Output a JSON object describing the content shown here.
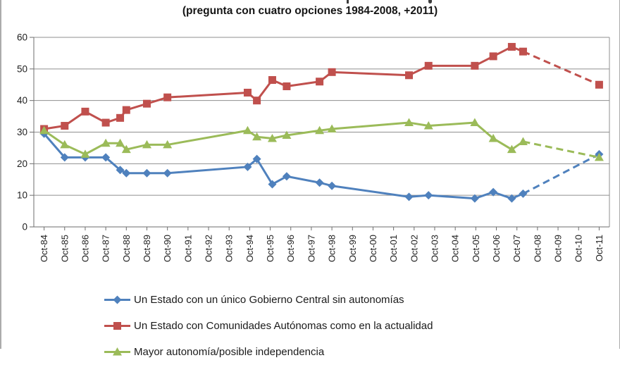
{
  "title_area": {
    "line1_clipped": true,
    "subtitle": "(pregunta con cuatro opciones 1984-2008, +2011)"
  },
  "chart_data": {
    "type": "line",
    "title": "(pregunta con cuatro opciones 1984-2008, +2011)",
    "categories": [
      "Oct-84",
      "Oct-85",
      "Oct-86",
      "Oct-87",
      "Oct-88",
      "Oct-89",
      "Oct-90",
      "Oct-91",
      "Oct-92",
      "Oct-93",
      "Oct-94",
      "Oct-95",
      "Oct-96",
      "Oct-97",
      "Oct-98",
      "Oct-99",
      "Oct-00",
      "Oct-01",
      "Oct-02",
      "Oct-03",
      "Oct-04",
      "Oct-05",
      "Oct-06",
      "Oct-07",
      "Oct-08",
      "Oct-09",
      "Oct-10",
      "Oct-11"
    ],
    "ylim": [
      0,
      60
    ],
    "yticks": [
      0,
      10,
      20,
      30,
      40,
      50,
      60
    ],
    "grid": true,
    "legend_position": "bottom",
    "x_unit": "category_index_fractional",
    "series": [
      {
        "name": "Un Estado con un único Gobierno Central sin autonomías",
        "color": "#4F81BD",
        "marker": "diamond",
        "points": [
          [
            0,
            29.5
          ],
          [
            1,
            22
          ],
          [
            2,
            22
          ],
          [
            3,
            22
          ],
          [
            3.7,
            18
          ],
          [
            4,
            17
          ],
          [
            5,
            17
          ],
          [
            6,
            17
          ],
          [
            9.9,
            19
          ],
          [
            10.35,
            21.5
          ],
          [
            11.1,
            13.5
          ],
          [
            11.8,
            16
          ],
          [
            13.4,
            14
          ],
          [
            14,
            13
          ],
          [
            17.75,
            9.5
          ],
          [
            18.7,
            10
          ],
          [
            20.95,
            9
          ],
          [
            21.85,
            11
          ],
          [
            22.75,
            9
          ],
          [
            23.3,
            10.5
          ]
        ],
        "dashed_tail": [
          [
            23.3,
            10.5
          ],
          [
            27,
            23
          ]
        ]
      },
      {
        "name": "Un Estado con Comunidades Autónomas como en la actualidad",
        "color": "#C0504D",
        "marker": "square",
        "points": [
          [
            0,
            31
          ],
          [
            1,
            32
          ],
          [
            2,
            36.5
          ],
          [
            3,
            33
          ],
          [
            3.7,
            34.5
          ],
          [
            4,
            37
          ],
          [
            5,
            39
          ],
          [
            6,
            41
          ],
          [
            9.9,
            42.5
          ],
          [
            10.35,
            40
          ],
          [
            11.1,
            46.5
          ],
          [
            11.8,
            44.5
          ],
          [
            13.4,
            46
          ],
          [
            14,
            49
          ],
          [
            17.75,
            48
          ],
          [
            18.7,
            51
          ],
          [
            20.95,
            51
          ],
          [
            21.85,
            54
          ],
          [
            22.75,
            57
          ],
          [
            23.3,
            55.5
          ]
        ],
        "dashed_tail": [
          [
            23.3,
            55.5
          ],
          [
            27,
            45
          ]
        ]
      },
      {
        "name": "Mayor autonomía/posible independencia",
        "color": "#9BBB59",
        "marker": "triangle",
        "points": [
          [
            0,
            30.5
          ],
          [
            1,
            26
          ],
          [
            2,
            23
          ],
          [
            3,
            26.5
          ],
          [
            3.7,
            26.5
          ],
          [
            4,
            24.5
          ],
          [
            5,
            26
          ],
          [
            6,
            26
          ],
          [
            9.9,
            30.5
          ],
          [
            10.35,
            28.5
          ],
          [
            11.1,
            28
          ],
          [
            11.8,
            29
          ],
          [
            13.4,
            30.5
          ],
          [
            14,
            31
          ],
          [
            17.75,
            33
          ],
          [
            18.7,
            32
          ],
          [
            20.95,
            33
          ],
          [
            21.85,
            28
          ],
          [
            22.75,
            24.5
          ],
          [
            23.3,
            27
          ]
        ],
        "dashed_tail": [
          [
            23.3,
            27
          ],
          [
            27,
            22
          ]
        ]
      }
    ],
    "colors": {
      "gridline": "#8f8f8f",
      "axis": "#6e6e6e",
      "tick_label": "#1f1f1f"
    }
  }
}
